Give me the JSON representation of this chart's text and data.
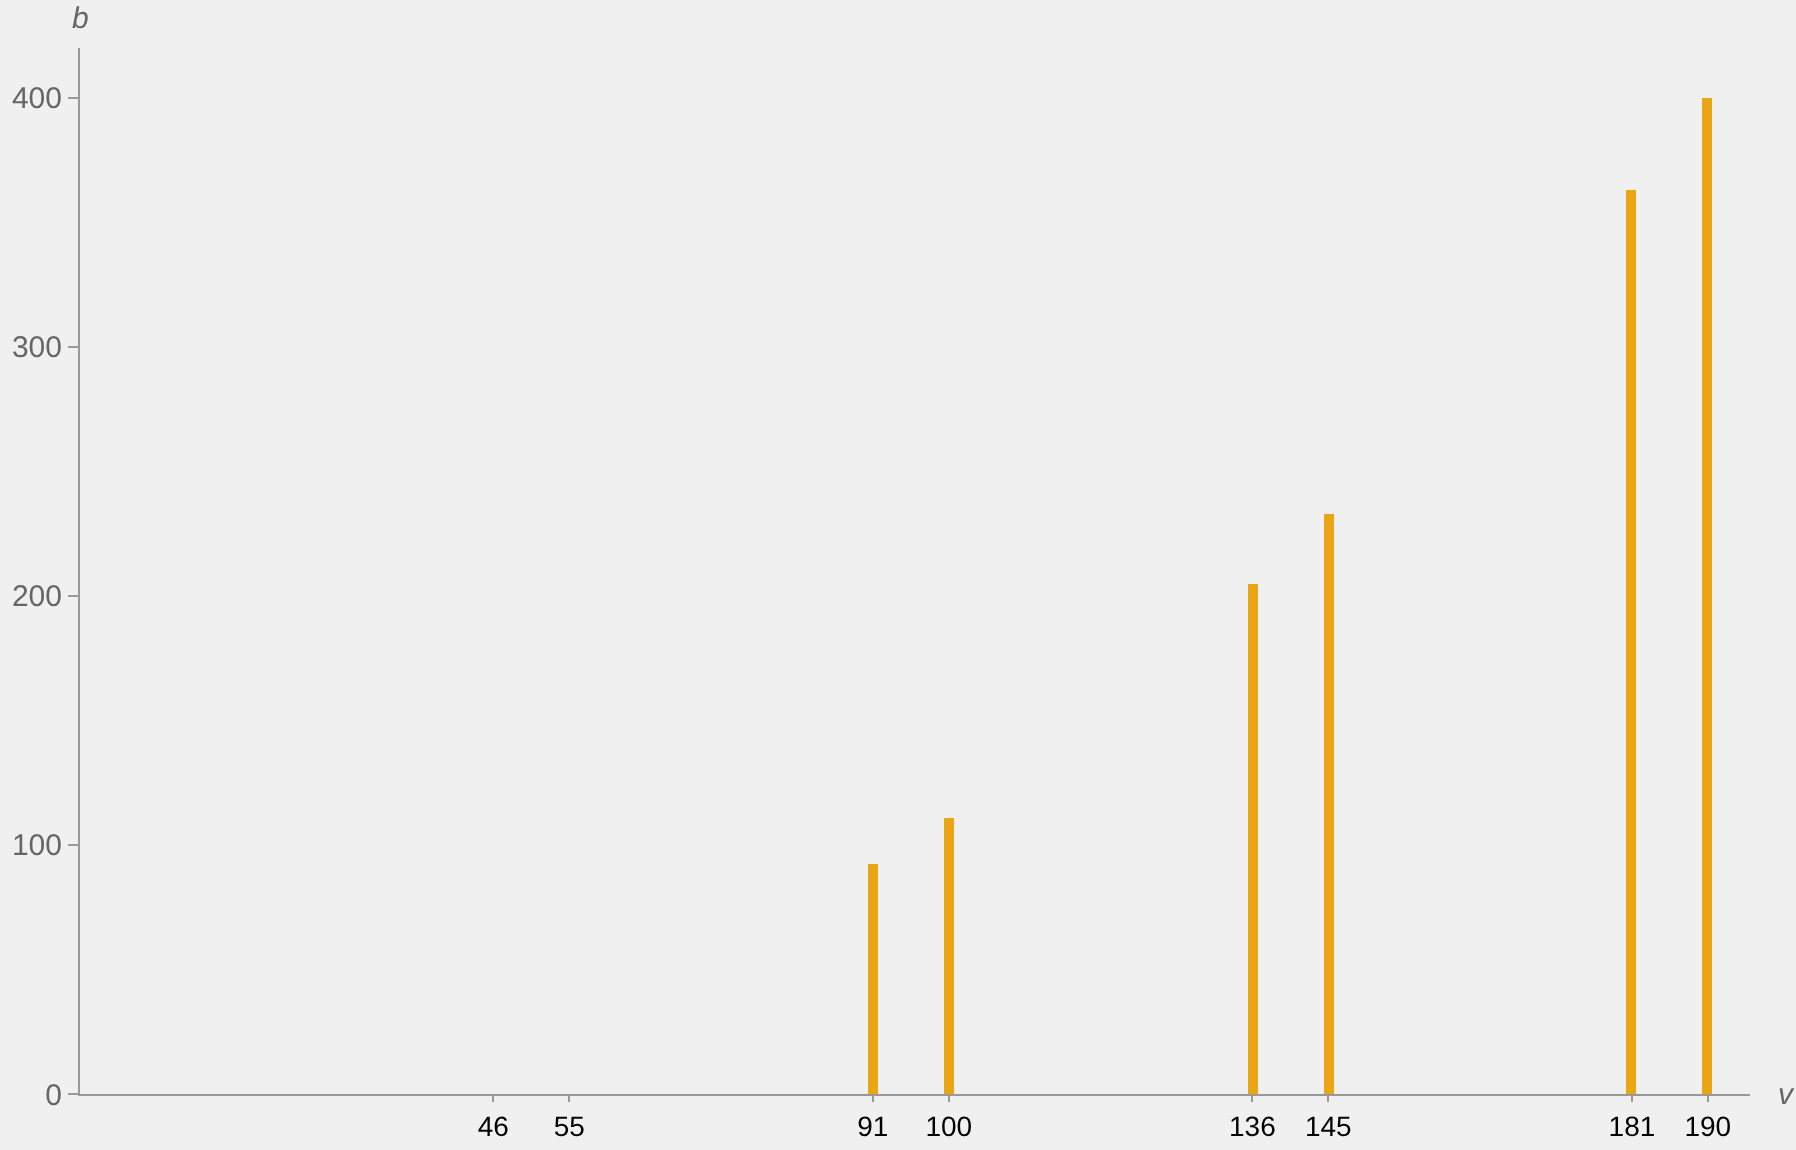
{
  "chart_data": {
    "type": "bar",
    "xlabel": "v",
    "ylabel": "b",
    "x": [
      46,
      55,
      91,
      100,
      136,
      145,
      181,
      190
    ],
    "values": [
      0,
      0,
      92,
      111,
      205,
      233,
      363,
      400
    ],
    "color": "#e9a514",
    "xlim": [
      -3,
      195
    ],
    "xticks": [
      46,
      55,
      91,
      100,
      136,
      145,
      181,
      190
    ],
    "ylim": [
      0,
      420
    ],
    "yticks": [
      0,
      100,
      200,
      300,
      400
    ],
    "grid": false
  }
}
